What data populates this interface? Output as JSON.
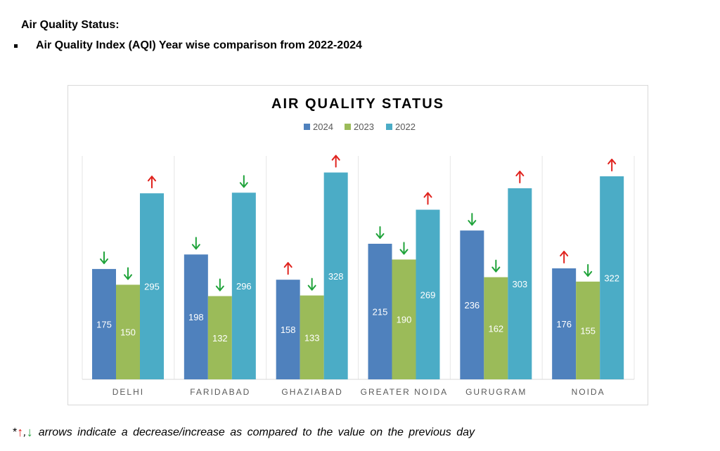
{
  "header": {
    "title": "Air Quality Status:",
    "subtitle": "Air Quality Index (AQI) Year wise comparison from 2022-2024"
  },
  "footnote": {
    "prefix": "*",
    "up_arrow": "↑",
    "separator": ",",
    "down_arrow": "↓",
    "text": "arrows  indicate  a decrease/increase as compared to the value on the previous day"
  },
  "colors": {
    "2024": "#4f81bd",
    "2023": "#9bbb59",
    "2022": "#4bacc6",
    "up_arrow": "#e0231e",
    "down_arrow": "#1fa33a"
  },
  "chart_data": {
    "type": "bar",
    "title": "AIR QUALITY STATUS",
    "legend": "top",
    "grid": false,
    "ylim": [
      0,
      350
    ],
    "categories": [
      "DELHI",
      "FARIDABAD",
      "GHAZIABAD",
      "GREATER NOIDA",
      "GURUGRAM",
      "NOIDA"
    ],
    "series": [
      {
        "name": "2024",
        "values": [
          175,
          198,
          158,
          215,
          236,
          176
        ],
        "arrows": [
          "down",
          "down",
          "up",
          "down",
          "down",
          "up"
        ]
      },
      {
        "name": "2023",
        "values": [
          150,
          132,
          133,
          190,
          162,
          155
        ],
        "arrows": [
          "down",
          "down",
          "down",
          "down",
          "down",
          "down"
        ]
      },
      {
        "name": "2022",
        "values": [
          295,
          296,
          328,
          269,
          303,
          322
        ],
        "arrows": [
          "up",
          "down",
          "up",
          "up",
          "up",
          "up"
        ]
      }
    ]
  }
}
